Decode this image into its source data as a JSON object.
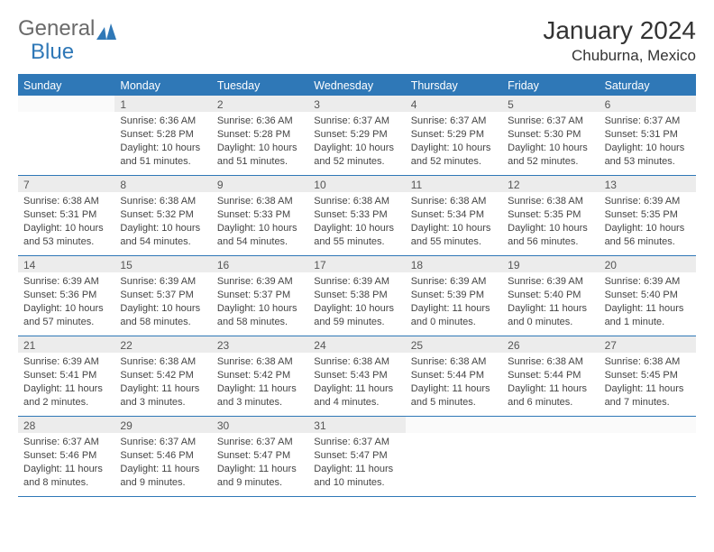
{
  "logo": {
    "text_general": "General",
    "text_blue": "Blue"
  },
  "title": "January 2024",
  "subtitle": "Chuburna, Mexico",
  "colors": {
    "accent": "#2f78b7",
    "num_bar": "#ececec",
    "text": "#333333",
    "body_text": "#444444"
  },
  "day_headers": [
    "Sunday",
    "Monday",
    "Tuesday",
    "Wednesday",
    "Thursday",
    "Friday",
    "Saturday"
  ],
  "weeks": [
    [
      {
        "num": "",
        "sunrise": "",
        "sunset": "",
        "daylight": ""
      },
      {
        "num": "1",
        "sunrise": "Sunrise: 6:36 AM",
        "sunset": "Sunset: 5:28 PM",
        "daylight": "Daylight: 10 hours and 51 minutes."
      },
      {
        "num": "2",
        "sunrise": "Sunrise: 6:36 AM",
        "sunset": "Sunset: 5:28 PM",
        "daylight": "Daylight: 10 hours and 51 minutes."
      },
      {
        "num": "3",
        "sunrise": "Sunrise: 6:37 AM",
        "sunset": "Sunset: 5:29 PM",
        "daylight": "Daylight: 10 hours and 52 minutes."
      },
      {
        "num": "4",
        "sunrise": "Sunrise: 6:37 AM",
        "sunset": "Sunset: 5:29 PM",
        "daylight": "Daylight: 10 hours and 52 minutes."
      },
      {
        "num": "5",
        "sunrise": "Sunrise: 6:37 AM",
        "sunset": "Sunset: 5:30 PM",
        "daylight": "Daylight: 10 hours and 52 minutes."
      },
      {
        "num": "6",
        "sunrise": "Sunrise: 6:37 AM",
        "sunset": "Sunset: 5:31 PM",
        "daylight": "Daylight: 10 hours and 53 minutes."
      }
    ],
    [
      {
        "num": "7",
        "sunrise": "Sunrise: 6:38 AM",
        "sunset": "Sunset: 5:31 PM",
        "daylight": "Daylight: 10 hours and 53 minutes."
      },
      {
        "num": "8",
        "sunrise": "Sunrise: 6:38 AM",
        "sunset": "Sunset: 5:32 PM",
        "daylight": "Daylight: 10 hours and 54 minutes."
      },
      {
        "num": "9",
        "sunrise": "Sunrise: 6:38 AM",
        "sunset": "Sunset: 5:33 PM",
        "daylight": "Daylight: 10 hours and 54 minutes."
      },
      {
        "num": "10",
        "sunrise": "Sunrise: 6:38 AM",
        "sunset": "Sunset: 5:33 PM",
        "daylight": "Daylight: 10 hours and 55 minutes."
      },
      {
        "num": "11",
        "sunrise": "Sunrise: 6:38 AM",
        "sunset": "Sunset: 5:34 PM",
        "daylight": "Daylight: 10 hours and 55 minutes."
      },
      {
        "num": "12",
        "sunrise": "Sunrise: 6:38 AM",
        "sunset": "Sunset: 5:35 PM",
        "daylight": "Daylight: 10 hours and 56 minutes."
      },
      {
        "num": "13",
        "sunrise": "Sunrise: 6:39 AM",
        "sunset": "Sunset: 5:35 PM",
        "daylight": "Daylight: 10 hours and 56 minutes."
      }
    ],
    [
      {
        "num": "14",
        "sunrise": "Sunrise: 6:39 AM",
        "sunset": "Sunset: 5:36 PM",
        "daylight": "Daylight: 10 hours and 57 minutes."
      },
      {
        "num": "15",
        "sunrise": "Sunrise: 6:39 AM",
        "sunset": "Sunset: 5:37 PM",
        "daylight": "Daylight: 10 hours and 58 minutes."
      },
      {
        "num": "16",
        "sunrise": "Sunrise: 6:39 AM",
        "sunset": "Sunset: 5:37 PM",
        "daylight": "Daylight: 10 hours and 58 minutes."
      },
      {
        "num": "17",
        "sunrise": "Sunrise: 6:39 AM",
        "sunset": "Sunset: 5:38 PM",
        "daylight": "Daylight: 10 hours and 59 minutes."
      },
      {
        "num": "18",
        "sunrise": "Sunrise: 6:39 AM",
        "sunset": "Sunset: 5:39 PM",
        "daylight": "Daylight: 11 hours and 0 minutes."
      },
      {
        "num": "19",
        "sunrise": "Sunrise: 6:39 AM",
        "sunset": "Sunset: 5:40 PM",
        "daylight": "Daylight: 11 hours and 0 minutes."
      },
      {
        "num": "20",
        "sunrise": "Sunrise: 6:39 AM",
        "sunset": "Sunset: 5:40 PM",
        "daylight": "Daylight: 11 hours and 1 minute."
      }
    ],
    [
      {
        "num": "21",
        "sunrise": "Sunrise: 6:39 AM",
        "sunset": "Sunset: 5:41 PM",
        "daylight": "Daylight: 11 hours and 2 minutes."
      },
      {
        "num": "22",
        "sunrise": "Sunrise: 6:38 AM",
        "sunset": "Sunset: 5:42 PM",
        "daylight": "Daylight: 11 hours and 3 minutes."
      },
      {
        "num": "23",
        "sunrise": "Sunrise: 6:38 AM",
        "sunset": "Sunset: 5:42 PM",
        "daylight": "Daylight: 11 hours and 3 minutes."
      },
      {
        "num": "24",
        "sunrise": "Sunrise: 6:38 AM",
        "sunset": "Sunset: 5:43 PM",
        "daylight": "Daylight: 11 hours and 4 minutes."
      },
      {
        "num": "25",
        "sunrise": "Sunrise: 6:38 AM",
        "sunset": "Sunset: 5:44 PM",
        "daylight": "Daylight: 11 hours and 5 minutes."
      },
      {
        "num": "26",
        "sunrise": "Sunrise: 6:38 AM",
        "sunset": "Sunset: 5:44 PM",
        "daylight": "Daylight: 11 hours and 6 minutes."
      },
      {
        "num": "27",
        "sunrise": "Sunrise: 6:38 AM",
        "sunset": "Sunset: 5:45 PM",
        "daylight": "Daylight: 11 hours and 7 minutes."
      }
    ],
    [
      {
        "num": "28",
        "sunrise": "Sunrise: 6:37 AM",
        "sunset": "Sunset: 5:46 PM",
        "daylight": "Daylight: 11 hours and 8 minutes."
      },
      {
        "num": "29",
        "sunrise": "Sunrise: 6:37 AM",
        "sunset": "Sunset: 5:46 PM",
        "daylight": "Daylight: 11 hours and 9 minutes."
      },
      {
        "num": "30",
        "sunrise": "Sunrise: 6:37 AM",
        "sunset": "Sunset: 5:47 PM",
        "daylight": "Daylight: 11 hours and 9 minutes."
      },
      {
        "num": "31",
        "sunrise": "Sunrise: 6:37 AM",
        "sunset": "Sunset: 5:47 PM",
        "daylight": "Daylight: 11 hours and 10 minutes."
      },
      {
        "num": "",
        "sunrise": "",
        "sunset": "",
        "daylight": ""
      },
      {
        "num": "",
        "sunrise": "",
        "sunset": "",
        "daylight": ""
      },
      {
        "num": "",
        "sunrise": "",
        "sunset": "",
        "daylight": ""
      }
    ]
  ]
}
